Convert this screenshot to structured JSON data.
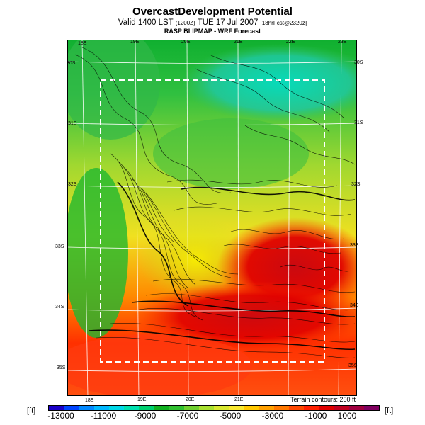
{
  "header": {
    "title": "OvercastDevelopment Potential",
    "subtitle_main": "Valid 1400 LST",
    "subtitle_small1": "(1200Z)",
    "subtitle_date": "TUE 17 Jul 2007",
    "subtitle_small2": "[18hrFcst@2320z]",
    "subtitle2": "RASP BLIPMAP - WRF Forecast"
  },
  "map": {
    "top_lon_labels": [
      "18E",
      "19E",
      "20E",
      "21E",
      "22E",
      "23E"
    ],
    "bottom_lon_labels": [
      "18E",
      "19E",
      "20E",
      "21E"
    ],
    "left_lat_labels": [
      "30S",
      "31S",
      "32S",
      "33S",
      "34S",
      "35S"
    ],
    "right_lat_labels": [
      "30S",
      "31S",
      "32S",
      "33S",
      "34S",
      "35S"
    ],
    "terrain_note": "Terrain contours: 250 ft"
  },
  "colorbar": {
    "unit": "[ft]",
    "ticks": [
      "-13000",
      "-11000",
      "-9000",
      "-7000",
      "-5000",
      "-3000",
      "-1000",
      "1000"
    ],
    "colors": [
      "#1a00c8",
      "#0044ff",
      "#0088ff",
      "#00b8ff",
      "#00d8e8",
      "#00e0b0",
      "#00d070",
      "#10b020",
      "#30c030",
      "#70d030",
      "#a8e030",
      "#d8e830",
      "#f8e830",
      "#ffc800",
      "#ffa000",
      "#ff7800",
      "#ff4800",
      "#ff2000",
      "#e00000",
      "#c00020",
      "#a00040",
      "#800060"
    ]
  }
}
